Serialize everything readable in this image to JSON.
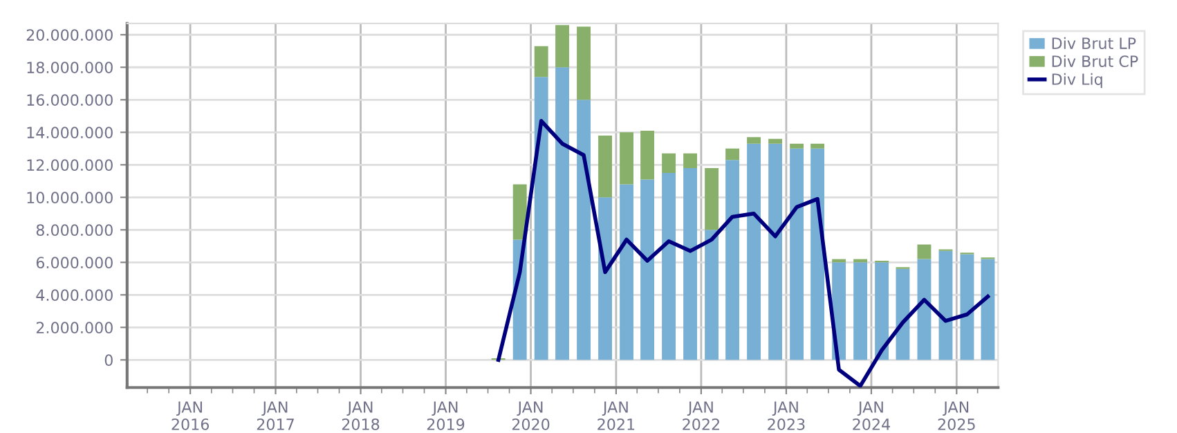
{
  "chart_data": {
    "type": "bar",
    "stacked": true,
    "x": [
      "2019-08-15",
      "2019-11-15",
      "2020-02-15",
      "2020-05-15",
      "2020-08-15",
      "2020-11-15",
      "2021-02-15",
      "2021-05-15",
      "2021-08-15",
      "2021-11-15",
      "2022-02-15",
      "2022-05-15",
      "2022-08-15",
      "2022-11-15",
      "2023-02-15",
      "2023-05-15",
      "2023-08-15",
      "2023-11-15",
      "2024-02-15",
      "2024-05-15",
      "2024-08-15",
      "2024-11-15",
      "2025-02-15",
      "2025-05-15"
    ],
    "series": [
      {
        "name": "Div Brut LP",
        "color": "#77b0d4",
        "values": [
          0,
          7400000,
          17400000,
          18000000,
          16000000,
          10000000,
          10800000,
          11100000,
          11500000,
          11800000,
          8000000,
          12300000,
          13300000,
          13300000,
          13000000,
          13000000,
          6000000,
          6000000,
          6000000,
          5600000,
          6200000,
          6700000,
          6500000,
          6200000
        ]
      },
      {
        "name": "Div Brut CP",
        "color": "#88b06a",
        "values": [
          100000,
          3400000,
          1900000,
          2600000,
          4500000,
          3800000,
          3200000,
          3000000,
          1200000,
          900000,
          3800000,
          700000,
          400000,
          300000,
          300000,
          300000,
          200000,
          200000,
          100000,
          100000,
          900000,
          100000,
          100000,
          100000
        ]
      },
      {
        "name": "Div Liq",
        "type": "line",
        "color": "#00007f",
        "values": [
          0,
          5400000,
          14700000,
          13300000,
          12600000,
          5400000,
          7400000,
          6100000,
          7300000,
          6700000,
          7400000,
          8800000,
          9000000,
          7600000,
          9400000,
          9900000,
          -600000,
          -1600000,
          600000,
          2300000,
          3700000,
          2400000,
          2800000,
          3900000
        ]
      }
    ],
    "xlim": [
      "2015-04-05",
      "2025-06-28"
    ],
    "xticks": [
      {
        "value": "2016-01-01",
        "label": "JAN\n2016"
      },
      {
        "value": "2017-01-01",
        "label": "JAN\n2017"
      },
      {
        "value": "2018-01-01",
        "label": "JAN\n2018"
      },
      {
        "value": "2019-01-01",
        "label": "JAN\n2019"
      },
      {
        "value": "2020-01-01",
        "label": "JAN\n2020"
      },
      {
        "value": "2021-01-01",
        "label": "JAN\n2021"
      },
      {
        "value": "2022-01-01",
        "label": "JAN\n2022"
      },
      {
        "value": "2023-01-01",
        "label": "JAN\n2023"
      },
      {
        "value": "2024-01-01",
        "label": "JAN\n2024"
      },
      {
        "value": "2025-01-01",
        "label": "JAN\n2025"
      }
    ],
    "ylim": [
      -1700000,
      20700000
    ],
    "yticks": [
      0,
      {
        "value": 2000000,
        "label": "2.000.000"
      },
      {
        "value": 4000000,
        "label": "4.000.000"
      },
      {
        "value": 6000000,
        "label": "6.000.000"
      },
      {
        "value": 8000000,
        "label": "8.000.000"
      },
      {
        "value": 10000000,
        "label": "10.000.000"
      },
      {
        "value": 12000000,
        "label": "12.000.000"
      },
      {
        "value": 14000000,
        "label": "14.000.000"
      },
      {
        "value": 16000000,
        "label": "16.000.000"
      },
      {
        "value": 18000000,
        "label": "18.000.000"
      },
      {
        "value": 20000000,
        "label": "20.000.000"
      }
    ],
    "grid": true,
    "legend": "top right"
  }
}
